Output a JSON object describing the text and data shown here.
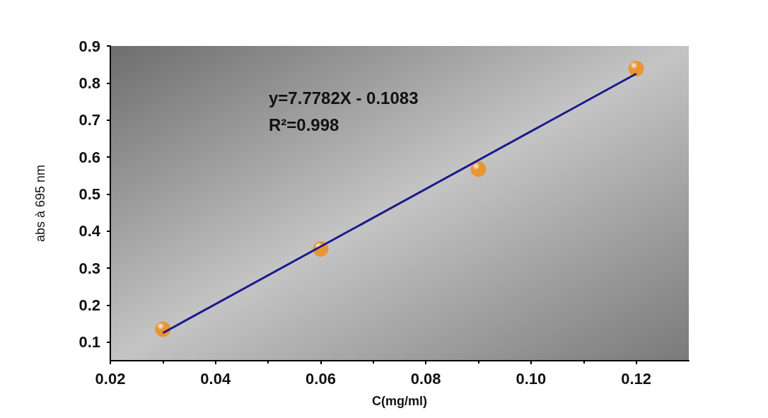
{
  "chart_data": {
    "type": "scatter",
    "xlabel": "C(mg/ml)",
    "ylabel": "abs à 695 nm",
    "x": [
      0.03,
      0.06,
      0.09,
      0.12
    ],
    "series": [
      {
        "color": "#f28a10",
        "marker": "circle",
        "values": [
          0.135,
          0.352,
          0.567,
          0.839
        ]
      },
      {
        "type": "line",
        "color": "#1a1a8c",
        "marker": "none",
        "x": [
          0.03,
          0.12
        ],
        "values": [
          0.125,
          0.825
        ]
      }
    ],
    "xlim": [
      0.02,
      0.13
    ],
    "xticks": [
      0.02,
      0.04,
      0.06,
      {
        "value": 0.08,
        "label": "0.08"
      },
      {
        "value": 0.1,
        "label": "0.10"
      },
      0.12
    ],
    "ylim": [
      0.05,
      0.9
    ],
    "yticks": [
      0.1,
      0.2,
      0.3,
      0.4,
      0.5,
      0.6,
      0.7,
      0.8,
      0.9
    ],
    "annotations": [
      "y=7.7782X - 0.1083",
      "R²=0.998"
    ],
    "grid": false
  }
}
